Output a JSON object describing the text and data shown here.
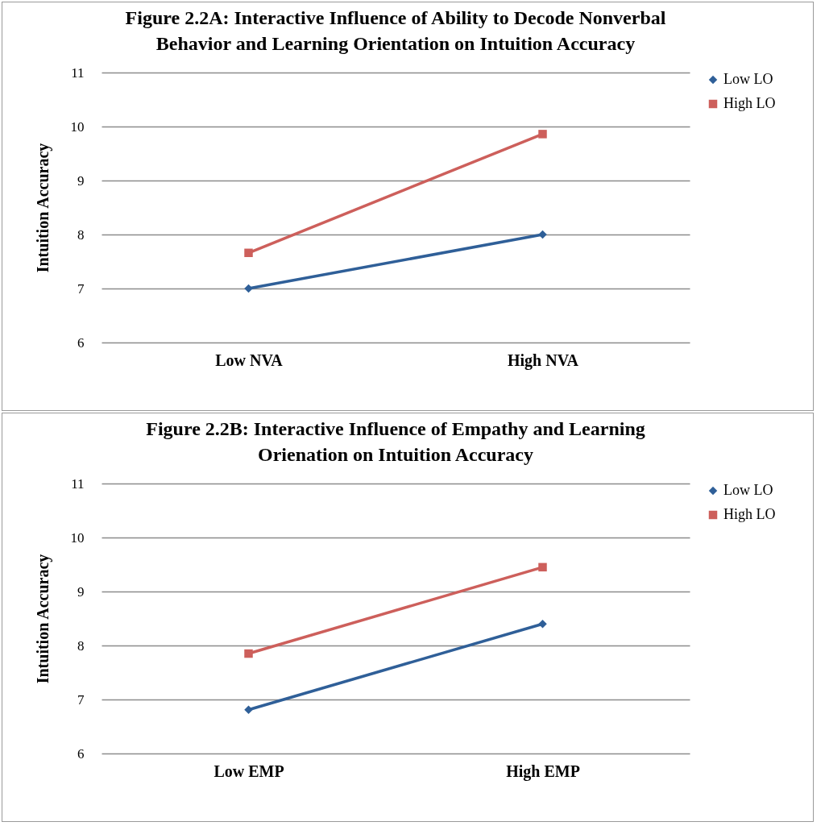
{
  "chart_data": [
    {
      "type": "line",
      "title": "Figure 2.2A: Interactive Influence of Ability to Decode Nonverbal Behavior and Learning Orientation on Intuition Accuracy",
      "ylabel": "Intuition Accuracy",
      "categories": [
        "Low NVA",
        "High NVA"
      ],
      "series": [
        {
          "name": "Low LO",
          "color": "#2f5f98",
          "marker": "diamond",
          "values": [
            7.0,
            8.0
          ]
        },
        {
          "name": "High LO",
          "color": "#cd5f5b",
          "marker": "square",
          "values": [
            7.66,
            9.86
          ]
        }
      ],
      "ylim": [
        6,
        11
      ],
      "yticks": [
        6,
        7,
        8,
        9,
        10,
        11
      ],
      "grid": "y",
      "legend": "right"
    },
    {
      "type": "line",
      "title": "Figure 2.2B: Interactive Influence of Empathy and Learning Orienation on Intuition Accuracy",
      "ylabel": "Intuition Accuracy",
      "categories": [
        "Low EMP",
        "High EMP"
      ],
      "series": [
        {
          "name": "Low LO",
          "color": "#2f5f98",
          "marker": "diamond",
          "values": [
            6.81,
            8.4
          ]
        },
        {
          "name": "High LO",
          "color": "#cd5f5b",
          "marker": "square",
          "values": [
            7.85,
            9.45
          ]
        }
      ],
      "ylim": [
        6,
        11
      ],
      "yticks": [
        6,
        7,
        8,
        9,
        10,
        11
      ],
      "grid": "y",
      "legend": "right"
    }
  ]
}
